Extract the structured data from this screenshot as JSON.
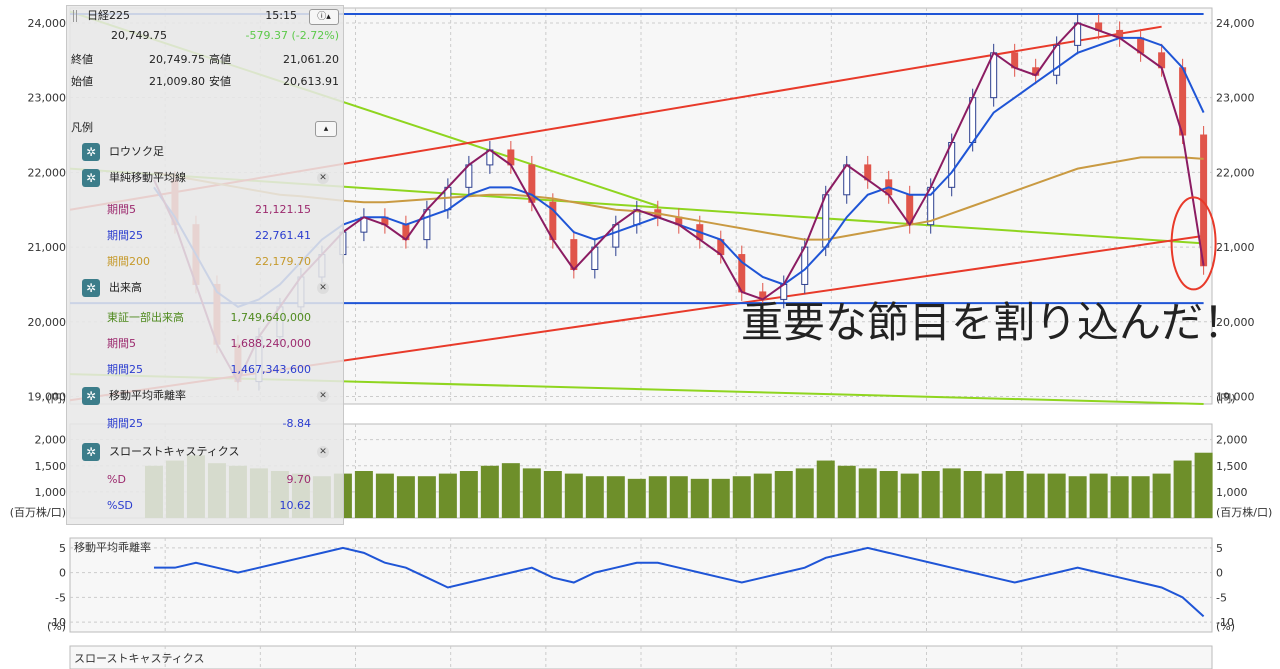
{
  "legend": {
    "title": "日経225",
    "time": "15:15",
    "price": "20,749.75",
    "change": "-579.37 (-2.72%)",
    "close_label": "終値",
    "close": "20,749.75",
    "high_label": "高値",
    "high": "21,061.20",
    "open_label": "始値",
    "open": "21,009.80",
    "low_label": "安値",
    "low": "20,613.91",
    "section_label": "凡例",
    "candles_label": "ロウソク足",
    "sma_label": "単純移動平均線",
    "sma": [
      {
        "label": "期間5",
        "value": "21,121.15"
      },
      {
        "label": "期間25",
        "value": "22,761.41"
      },
      {
        "label": "期間200",
        "value": "22,179.70"
      }
    ],
    "volume_label": "出来高",
    "volume": [
      {
        "label": "東証一部出来高",
        "value": "1,749,640,000"
      },
      {
        "label": "期間5",
        "value": "1,688,240,000"
      },
      {
        "label": "期間25",
        "value": "1,467,343,600"
      }
    ],
    "deviation_label": "移動平均乖離率",
    "deviation": [
      {
        "label": "期間25",
        "value": "-8.84"
      }
    ],
    "stoch_label": "スローストキャスティクス",
    "stoch": [
      {
        "label": "%D",
        "value": "9.70"
      },
      {
        "label": "%SD",
        "value": "10.62"
      }
    ]
  },
  "annotation": "重要な節目を割り込んだ！",
  "colors": {
    "up": "#2c3f8f",
    "down": "#e0554a",
    "sma5": "#8b1c62",
    "sma25": "#1f55d6",
    "sma200": "#c99a42",
    "vol": "#6e8f2a",
    "green_line": "#8fd51f",
    "red_line": "#e83a2a",
    "hline": "#1f55d6"
  },
  "chart_data": [
    {
      "type": "line",
      "name": "price",
      "y_ticks": [
        "24,000",
        "23,000",
        "22,000",
        "21,000",
        "20,000",
        "19,000"
      ],
      "y_tick_values": [
        24000,
        23000,
        22000,
        21000,
        20000,
        19000
      ],
      "unit_label": "(円)",
      "ylim": [
        18900,
        24200
      ],
      "x": [
        0,
        5,
        10,
        15,
        20,
        25,
        30,
        35,
        40,
        45,
        50,
        55,
        60,
        65,
        70,
        75,
        80,
        85,
        90,
        95,
        100,
        105,
        110,
        115,
        120,
        125,
        130,
        135,
        140,
        145,
        150,
        155,
        160,
        165,
        170,
        175,
        180,
        185,
        190,
        195,
        200,
        205,
        210,
        215,
        220,
        225,
        230,
        235,
        240,
        245,
        250
      ],
      "close": [
        21900,
        21300,
        20500,
        19700,
        19200,
        19800,
        20200,
        20600,
        20900,
        21200,
        21400,
        21300,
        21100,
        21500,
        21800,
        22100,
        22300,
        22100,
        21600,
        21100,
        20700,
        21000,
        21300,
        21500,
        21400,
        21300,
        21100,
        20900,
        20400,
        20300,
        20500,
        21000,
        21700,
        22100,
        21900,
        21700,
        21300,
        21800,
        22400,
        23000,
        23600,
        23400,
        23300,
        23700,
        24000,
        23900,
        23800,
        23600,
        23400,
        22500,
        20750
      ],
      "sma25": [
        21800,
        21400,
        20900,
        20400,
        20200,
        20300,
        20500,
        20800,
        21100,
        21300,
        21400,
        21400,
        21300,
        21400,
        21500,
        21700,
        21800,
        21800,
        21700,
        21500,
        21200,
        21100,
        21200,
        21300,
        21400,
        21300,
        21200,
        21100,
        20800,
        20600,
        20500,
        20700,
        21000,
        21400,
        21700,
        21800,
        21700,
        21700,
        22000,
        22400,
        22800,
        23000,
        23200,
        23400,
        23600,
        23700,
        23800,
        23800,
        23700,
        23400,
        22800
      ],
      "sma200": [
        22000,
        21950,
        21900,
        21850,
        21800,
        21750,
        21700,
        21680,
        21650,
        21620,
        21600,
        21600,
        21620,
        21640,
        21660,
        21680,
        21700,
        21700,
        21680,
        21650,
        21600,
        21550,
        21500,
        21480,
        21450,
        21400,
        21350,
        21300,
        21250,
        21200,
        21150,
        21100,
        21100,
        21150,
        21200,
        21250,
        21300,
        21350,
        21450,
        21550,
        21650,
        21750,
        21850,
        21950,
        22050,
        22100,
        22150,
        22200,
        22200,
        22200,
        22180
      ]
    },
    {
      "type": "bar",
      "name": "volume",
      "y_ticks": [
        "2,000",
        "1,500",
        "1,000"
      ],
      "y_tick_values": [
        2000,
        1500,
        1000
      ],
      "unit_label": "(百万株/口)",
      "ylim": [
        500,
        2300
      ],
      "values": [
        1500,
        1600,
        1700,
        1550,
        1500,
        1450,
        1400,
        1350,
        1300,
        1350,
        1400,
        1350,
        1300,
        1300,
        1350,
        1400,
        1500,
        1550,
        1450,
        1400,
        1350,
        1300,
        1300,
        1250,
        1300,
        1300,
        1250,
        1250,
        1300,
        1350,
        1400,
        1450,
        1600,
        1500,
        1450,
        1400,
        1350,
        1400,
        1450,
        1400,
        1350,
        1400,
        1350,
        1350,
        1300,
        1350,
        1300,
        1300,
        1350,
        1600,
        1750
      ]
    },
    {
      "type": "line",
      "name": "移動平均乖離率",
      "title": "移動平均乖離率",
      "y_ticks": [
        "5",
        "0",
        "-5",
        "-10"
      ],
      "y_tick_values": [
        5,
        0,
        -5,
        -10
      ],
      "unit_label": "(%)",
      "ylim": [
        -12,
        7
      ],
      "values": [
        1,
        1,
        2,
        1,
        0,
        1,
        2,
        3,
        4,
        5,
        4,
        2,
        1,
        -1,
        -3,
        -2,
        -1,
        0,
        1,
        -1,
        -2,
        0,
        1,
        2,
        2,
        1,
        0,
        -1,
        -2,
        -1,
        0,
        1,
        3,
        4,
        5,
        4,
        3,
        2,
        1,
        0,
        -1,
        -2,
        -1,
        0,
        1,
        0,
        -1,
        -2,
        -3,
        -5,
        -8.84
      ]
    },
    {
      "type": "line",
      "name": "スローストキャスティクス",
      "title": "スローストキャスティクス"
    }
  ],
  "annotation_lines": [
    {
      "name": "green-channel-upper",
      "color": "#8fd51f",
      "p1": [
        -20,
        24150
      ],
      "p2": [
        120,
        21550
      ]
    },
    {
      "name": "green-channel-mid",
      "color": "#8fd51f",
      "p1": [
        -20,
        22050
      ],
      "p2": [
        250,
        21050
      ]
    },
    {
      "name": "green-channel-lower",
      "color": "#8fd51f",
      "p1": [
        -20,
        19300
      ],
      "p2": [
        250,
        18900
      ]
    },
    {
      "name": "red-channel-upper",
      "color": "#e83a2a",
      "p1": [
        -20,
        21500
      ],
      "p2": [
        240,
        23950
      ]
    },
    {
      "name": "red-channel-lower",
      "color": "#e83a2a",
      "p1": [
        -20,
        18950
      ],
      "p2": [
        250,
        21150
      ]
    },
    {
      "name": "support-hline",
      "color": "#1f55d6",
      "p1": [
        -20,
        20250
      ],
      "p2": [
        250,
        20250
      ]
    },
    {
      "name": "resistance-hline",
      "color": "#1f55d6",
      "p1": [
        -20,
        24120
      ],
      "p2": [
        250,
        24120
      ]
    }
  ]
}
